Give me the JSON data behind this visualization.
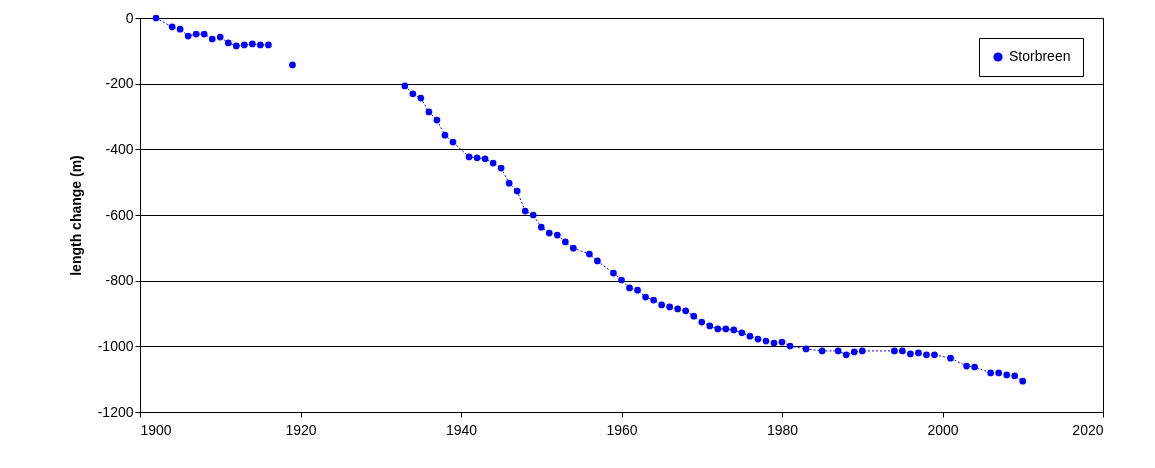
{
  "chart_data": {
    "type": "line",
    "ylabel": "length change (m)",
    "x": [
      1902,
      1904,
      1905,
      1906,
      1907,
      1908,
      1909,
      1910,
      1911,
      1912,
      1913,
      1914,
      1915,
      1916,
      1917,
      1919,
      1920,
      1933,
      1934,
      1935,
      1936,
      1937,
      1938,
      1939,
      1941,
      1942,
      1943,
      1944,
      1945,
      1946,
      1947,
      1948,
      1949,
      1950,
      1951,
      1952,
      1953,
      1954,
      1956,
      1957,
      1959,
      1960,
      1961,
      1962,
      1963,
      1964,
      1965,
      1966,
      1967,
      1968,
      1969,
      1970,
      1971,
      1972,
      1973,
      1974,
      1975,
      1976,
      1977,
      1978,
      1979,
      1980,
      1981,
      1983,
      1985,
      1987,
      1988,
      1989,
      1990,
      1994,
      1995,
      1996,
      1997,
      1998,
      1999,
      2001,
      2003,
      2004,
      2006,
      2007,
      2008,
      2009,
      2010
    ],
    "series": [
      {
        "name": "Storbreen",
        "color": "#0000ff",
        "values": [
          0,
          -27,
          -34,
          -55,
          -49,
          -49,
          -64,
          -58,
          -76,
          -85,
          -82,
          -79,
          -82,
          -82,
          null,
          -143,
          null,
          -207,
          -231,
          -244,
          -286,
          -311,
          -357,
          -378,
          -423,
          -426,
          -429,
          -442,
          -457,
          -503,
          -527,
          -588,
          -600,
          -637,
          -655,
          -661,
          -682,
          -701,
          -719,
          -740,
          -777,
          -798,
          -822,
          -829,
          -850,
          -859,
          -874,
          -880,
          -886,
          -892,
          -908,
          -926,
          -938,
          -947,
          -947,
          -950,
          -959,
          -969,
          -978,
          -984,
          -990,
          -987,
          -999,
          -1008,
          -1014,
          -1014,
          -1026,
          -1017,
          -1014,
          -1014,
          -1014,
          -1023,
          -1020,
          -1026,
          -1026,
          -1036,
          -1060,
          -1063,
          -1081,
          -1081,
          -1087,
          -1090,
          -1106
        ]
      }
    ],
    "xlim": [
      1900,
      2020
    ],
    "xticks": [
      1900,
      1920,
      1940,
      1960,
      1980,
      2000,
      2020
    ],
    "ylim": [
      -1200,
      0
    ],
    "yticks": [
      -1200,
      -1000,
      -800,
      -600,
      -400,
      -200,
      0
    ],
    "grid": "y",
    "legend": "top right",
    "marker": "circle",
    "line_style": "dotted"
  }
}
